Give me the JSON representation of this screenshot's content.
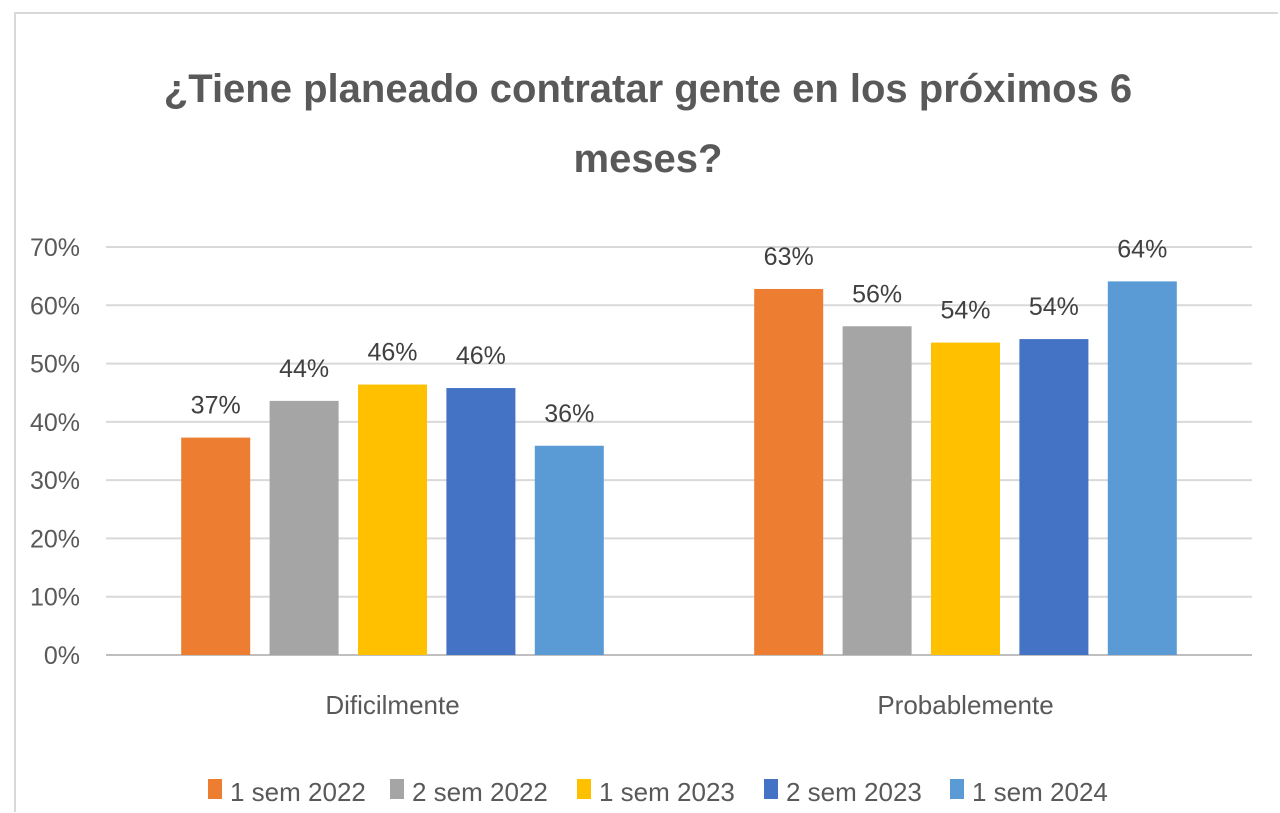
{
  "chart_data": {
    "type": "bar",
    "title_lines": [
      "¿Tiene planeado contratar gente en los próximos 6",
      "meses?"
    ],
    "categories": [
      "Dificilmente",
      "Probablemente"
    ],
    "y_tick_labels": [
      "0%",
      "10%",
      "20%",
      "30%",
      "40%",
      "50%",
      "60%",
      "70%"
    ],
    "ylim": [
      0,
      70
    ],
    "grid": true,
    "legend_position": "bottom",
    "series": [
      {
        "name": "1 sem 2022",
        "color": "#ED7D31",
        "values": [
          37.3,
          62.8
        ],
        "labels": [
          "37%",
          "63%"
        ]
      },
      {
        "name": "2 sem 2022",
        "color": "#A5A5A5",
        "values": [
          43.6,
          56.4
        ],
        "labels": [
          "44%",
          "56%"
        ]
      },
      {
        "name": "1 sem 2023",
        "color": "#FFC000",
        "values": [
          46.4,
          53.6
        ],
        "labels": [
          "46%",
          "54%"
        ]
      },
      {
        "name": "2 sem 2023",
        "color": "#4472C4",
        "values": [
          45.8,
          54.2
        ],
        "labels": [
          "46%",
          "54%"
        ]
      },
      {
        "name": "1 sem 2024",
        "color": "#5B9BD5",
        "values": [
          35.9,
          64.1
        ],
        "labels": [
          "36%",
          "64%"
        ]
      }
    ]
  }
}
